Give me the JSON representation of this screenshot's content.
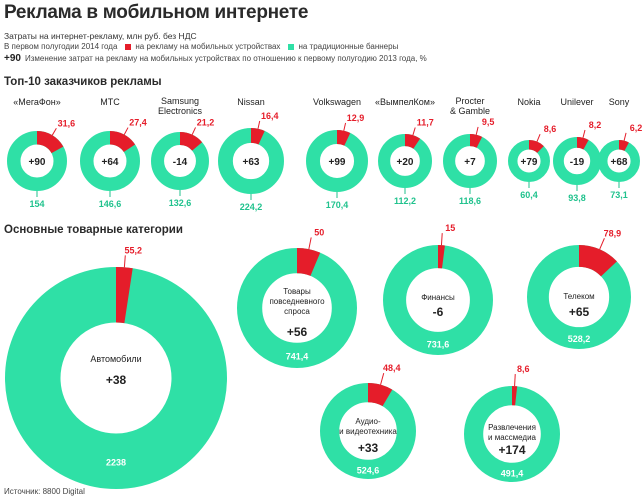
{
  "header": {
    "title": "Реклама в мобильном интернете",
    "subtitle": "Затраты на интернет-рекламу, млн руб. без НДС",
    "legend_period": "В первом полугодии 2014 года",
    "legend_mobile": "на рекламу на мобильных устройствах",
    "legend_banners": "на традиционные баннеры",
    "legend_change_sample": "+90",
    "legend_change_text": "Изменение затрат на рекламу на мобильных устройствах по отношению к первому полугодию 2013 года, %"
  },
  "colors": {
    "mobile": "#e51d2a",
    "banners": "#2fe0a6",
    "banners_label": "#20c28d"
  },
  "section_top": "Топ-10 заказчиков рекламы",
  "section_categories": "Основные товарные категории",
  "source": "Источник: 8800 Digital",
  "chart_data": [
    {
      "type": "pie",
      "title": "Топ-10 заказчиков рекламы",
      "items": [
        {
          "name": "«МегаФон»",
          "mobile": 31.6,
          "mobile_label": "31,6",
          "banners": 154,
          "banners_label": "154",
          "change": "+90"
        },
        {
          "name": "МТС",
          "mobile": 27.4,
          "mobile_label": "27,4",
          "banners": 146.6,
          "banners_label": "146,6",
          "change": "+64"
        },
        {
          "name": "Samsung\nElectronics",
          "mobile": 21.2,
          "mobile_label": "21,2",
          "banners": 132.6,
          "banners_label": "132,6",
          "change": "-14"
        },
        {
          "name": "Nissan",
          "mobile": 16.4,
          "mobile_label": "16,4",
          "banners": 224.2,
          "banners_label": "224,2",
          "change": "+63"
        },
        {
          "name": "Volkswagen",
          "mobile": 12.9,
          "mobile_label": "12,9",
          "banners": 170.4,
          "banners_label": "170,4",
          "change": "+99"
        },
        {
          "name": "«ВымпелКом»",
          "mobile": 11.7,
          "mobile_label": "11,7",
          "banners": 112.2,
          "banners_label": "112,2",
          "change": "+20"
        },
        {
          "name": "Procter\n& Gamble",
          "mobile": 9.5,
          "mobile_label": "9,5",
          "banners": 118.6,
          "banners_label": "118,6",
          "change": "+7"
        },
        {
          "name": "Nokia",
          "mobile": 8.6,
          "mobile_label": "8,6",
          "banners": 60.4,
          "banners_label": "60,4",
          "change": "+79"
        },
        {
          "name": "Unilever",
          "mobile": 8.2,
          "mobile_label": "8,2",
          "banners": 93.8,
          "banners_label": "93,8",
          "change": "-19"
        },
        {
          "name": "Sony",
          "mobile": 6.2,
          "mobile_label": "6,2",
          "banners": 73.1,
          "banners_label": "73,1",
          "change": "+68"
        }
      ]
    },
    {
      "type": "pie",
      "title": "Основные товарные категории",
      "items": [
        {
          "name": "Автомобили",
          "mobile": 55.2,
          "mobile_label": "55,2",
          "banners": 2238,
          "banners_label": "2238",
          "change": "+38"
        },
        {
          "name": "Товары\nповседневного\nспроса",
          "mobile": 50,
          "mobile_label": "50",
          "banners": 741.4,
          "banners_label": "741,4",
          "change": "+56"
        },
        {
          "name": "Финансы",
          "mobile": 15,
          "mobile_label": "15",
          "banners": 731.6,
          "banners_label": "731,6",
          "change": "-6"
        },
        {
          "name": "Телеком",
          "mobile": 78.9,
          "mobile_label": "78,9",
          "banners": 528.2,
          "banners_label": "528,2",
          "change": "+65"
        },
        {
          "name": "Аудио-\nи видеотехника",
          "mobile": 48.4,
          "mobile_label": "48,4",
          "banners": 524.6,
          "banners_label": "524,6",
          "change": "+33"
        },
        {
          "name": "Развлечения\nи массмедиа",
          "mobile": 8.6,
          "mobile_label": "8,6",
          "banners": 491.4,
          "banners_label": "491,4",
          "change": "+174"
        }
      ]
    }
  ]
}
